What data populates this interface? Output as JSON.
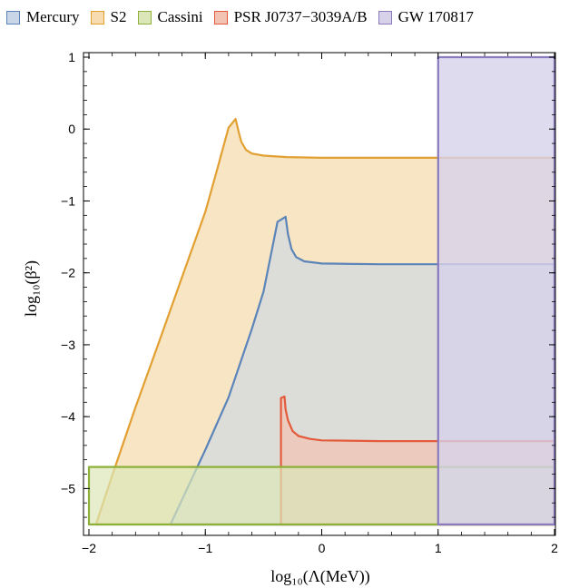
{
  "legend": {
    "items": [
      {
        "label": "Mercury",
        "fill": "#c9d6e8",
        "stroke": "#5b84b9"
      },
      {
        "label": "S2",
        "fill": "#f6dcb0",
        "stroke": "#e2a033"
      },
      {
        "label": "Cassini",
        "fill": "#dbe7b8",
        "stroke": "#8db03b"
      },
      {
        "label": "PSR J0737−3039A/B",
        "fill": "#f2c2b2",
        "stroke": "#e35b3a"
      },
      {
        "label": "GW 170817",
        "fill": "#d7d2ea",
        "stroke": "#8a7bbf"
      }
    ]
  },
  "chart_data": {
    "type": "area",
    "xlabel": "log₁₀(Λ(MeV))",
    "ylabel": "log₁₀(β²)",
    "xlim": [
      -2,
      2
    ],
    "ylim": [
      -5.5,
      1
    ],
    "x_ticks": [
      "−2",
      "−1",
      "0",
      "1",
      "2"
    ],
    "y_ticks": [
      "−5",
      "−4",
      "−3",
      "−2",
      "−1",
      "0",
      "1"
    ],
    "grid": false,
    "legend_position": "top",
    "series": [
      {
        "name": "S2",
        "fill": "#f6dcb0",
        "stroke": "#e2a033",
        "fill_opacity": 0.75,
        "x": [
          -1.94,
          -1.8,
          -1.6,
          -1.4,
          -1.2,
          -1.0,
          -0.9,
          -0.8,
          -0.78,
          -0.74,
          -0.71,
          -0.69,
          -0.65,
          -0.6,
          -0.5,
          -0.3,
          0.0,
          0.5,
          1.0,
          1.5,
          2.0
        ],
        "y": [
          -5.5,
          -4.82,
          -3.87,
          -2.97,
          -2.06,
          -1.15,
          -0.57,
          0.02,
          0.06,
          0.14,
          -0.06,
          -0.18,
          -0.29,
          -0.34,
          -0.37,
          -0.39,
          -0.4,
          -0.4,
          -0.4,
          -0.4,
          -0.4
        ]
      },
      {
        "name": "Mercury",
        "fill": "#c9d6e8",
        "stroke": "#5b84b9",
        "fill_opacity": 0.6,
        "x": [
          -1.3,
          -1.0,
          -0.8,
          -0.6,
          -0.5,
          -0.38,
          -0.34,
          -0.31,
          -0.29,
          -0.26,
          -0.22,
          -0.15,
          0.0,
          0.5,
          1.0,
          1.5,
          2.0
        ],
        "y": [
          -5.5,
          -4.46,
          -3.73,
          -2.78,
          -2.26,
          -1.29,
          -1.25,
          -1.22,
          -1.46,
          -1.67,
          -1.78,
          -1.84,
          -1.87,
          -1.88,
          -1.88,
          -1.88,
          -1.88
        ]
      },
      {
        "name": "PSR J0737−3039A/B",
        "fill": "#f2c2b2",
        "stroke": "#e35b3a",
        "fill_opacity": 0.7,
        "x": [
          -0.35,
          -0.35,
          -0.32,
          -0.31,
          -0.29,
          -0.25,
          -0.2,
          -0.1,
          0.0,
          0.5,
          1.0,
          1.5,
          2.0
        ],
        "y": [
          -5.5,
          -3.74,
          -3.72,
          -3.9,
          -4.05,
          -4.2,
          -4.27,
          -4.31,
          -4.33,
          -4.34,
          -4.34,
          -4.34,
          -4.34
        ]
      },
      {
        "name": "Cassini",
        "fill": "#dbe7b8",
        "stroke": "#8db03b",
        "fill_opacity": 0.7,
        "x": [
          -2,
          2
        ],
        "y": [
          -4.7,
          -4.7
        ]
      },
      {
        "name": "GW 170817",
        "fill": "#d7d2ea",
        "stroke": "#8a7bbf",
        "fill_opacity": 0.8,
        "x": [
          1,
          2
        ],
        "y": [
          1,
          1
        ]
      }
    ]
  }
}
